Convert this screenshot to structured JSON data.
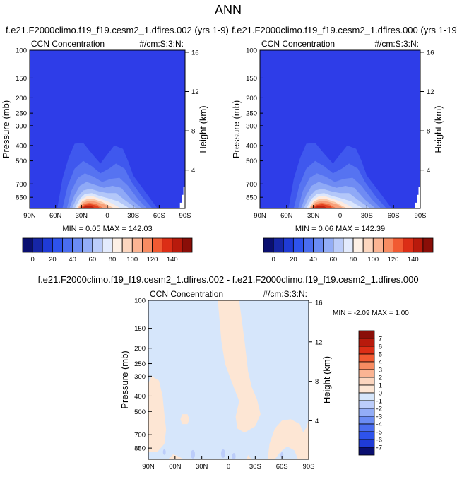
{
  "title": "ANN",
  "colors": {
    "deep_blue": "#2e3de8",
    "bg_light_blue": "#d6e6fb",
    "diff_pos_beige": "#fde6d4"
  },
  "chart_data": [
    {
      "type": "heatmap",
      "case_title": "f.e21.F2000climo.f19_f19.cesm2_1.dfires.002 (yrs 1-9)",
      "left_label": "CCN Concentration",
      "right_label": "#/cm:S:3:N:",
      "ylabel": "Pressure (mb)",
      "ylabel_right": "Height (km)",
      "x_ticks": [
        "90N",
        "60N",
        "30N",
        "0",
        "30S",
        "60S",
        "90S"
      ],
      "y_ticks": [
        "100",
        "150",
        "200",
        "250",
        "300",
        "400",
        "500",
        "700",
        "850"
      ],
      "height_ticks": [
        "16",
        "12",
        "8",
        "4"
      ],
      "stats": "MIN =  0.05  MAX = 142.03",
      "min": 0.05,
      "max": 142.03
    },
    {
      "type": "heatmap",
      "case_title": "f.e21.F2000climo.f19_f19.cesm2_1.dfires.000 (yrs 1-19)",
      "left_label": "CCN Concentration",
      "right_label": "#/cm:S:3:N:",
      "ylabel": "Pressure (mb)",
      "ylabel_right": "Height (km)",
      "x_ticks": [
        "90N",
        "60N",
        "30N",
        "0",
        "30S",
        "60S",
        "90S"
      ],
      "y_ticks": [
        "100",
        "150",
        "200",
        "250",
        "300",
        "400",
        "500",
        "700",
        "850"
      ],
      "height_ticks": [
        "16",
        "12",
        "8",
        "4"
      ],
      "stats": "MIN =  0.06  MAX = 142.39",
      "min": 0.06,
      "max": 142.39
    },
    {
      "type": "heatmap",
      "case_title": "f.e21.F2000climo.f19_f19.cesm2_1.dfires.002 - f.e21.F2000climo.f19_f19.cesm2_1.dfires.000",
      "left_label": "CCN Concentration",
      "right_label": "#/cm:S:3:N:",
      "ylabel": "Pressure (mb)",
      "ylabel_right": "Height (km)",
      "x_ticks": [
        "90N",
        "60N",
        "30N",
        "0",
        "30S",
        "60S",
        "90S"
      ],
      "y_ticks": [
        "100",
        "150",
        "200",
        "250",
        "300",
        "400",
        "500",
        "700",
        "850"
      ],
      "height_ticks": [
        "16",
        "12",
        "8",
        "4"
      ],
      "stats": "MIN = -2.09  MAX =  1.00",
      "min": -2.09,
      "max": 1.0
    }
  ],
  "colorbar_top": {
    "labels": [
      "0",
      "20",
      "40",
      "60",
      "80",
      "100",
      "120",
      "140"
    ],
    "colors": [
      "#0a0f70",
      "#1626a6",
      "#1f3bd6",
      "#2e53ec",
      "#4a6df0",
      "#6b8cf4",
      "#93adf7",
      "#bccdfa",
      "#e3ebfd",
      "#fdf0e6",
      "#fcd6bf",
      "#fbb493",
      "#f78c62",
      "#f15a32",
      "#dc2e16",
      "#b81a0c",
      "#8a0e08"
    ]
  },
  "colorbar_diff": {
    "labels": [
      "7",
      "6",
      "5",
      "4",
      "3",
      "2",
      "1",
      "0",
      "-1",
      "-2",
      "-3",
      "-4",
      "-5",
      "-6",
      "-7"
    ],
    "colors": [
      "#8a0e08",
      "#b81a0c",
      "#dc2e16",
      "#f15a32",
      "#f78c62",
      "#fbb493",
      "#fcd6bf",
      "#fde6d4",
      "#d6e6fb",
      "#bccdfa",
      "#93adf7",
      "#6b8cf4",
      "#4a6df0",
      "#2e53ec",
      "#1f3bd6",
      "#0a0f70"
    ]
  }
}
